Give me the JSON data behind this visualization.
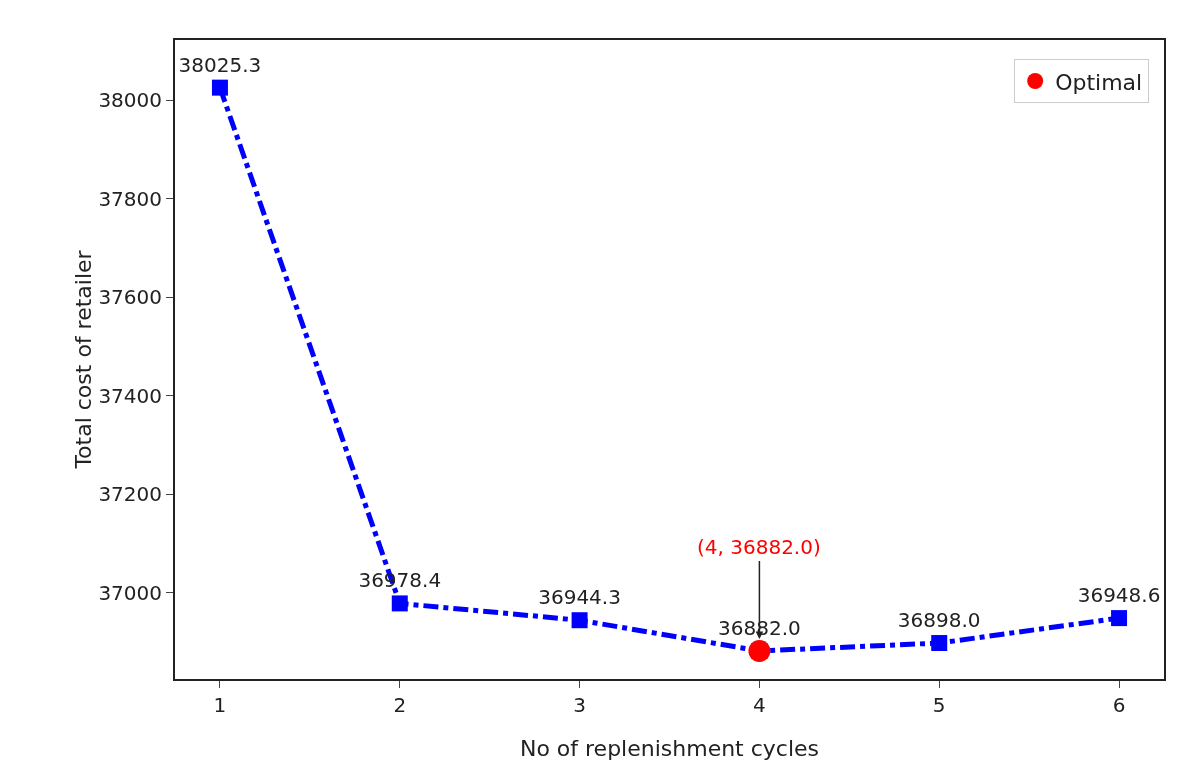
{
  "chart_data": {
    "type": "line",
    "xlabel": "No of replenishment cycles",
    "ylabel": "Total cost of retailer",
    "x": [
      1,
      2,
      3,
      4,
      5,
      6
    ],
    "series": [
      {
        "color": "#0000ff",
        "values": [
          38025.3,
          36978.4,
          36944.3,
          36882.0,
          36898.0,
          36948.6
        ],
        "value_labels": [
          "38025.3",
          "36978.4",
          "36944.3",
          "36882.0",
          "36898.0",
          "36948.6"
        ],
        "marker": "square",
        "line_style": "dashed"
      },
      {
        "name": "Optimal",
        "type": "scatter",
        "x": [
          4
        ],
        "color": "#ff0000",
        "values": [
          36882.0
        ],
        "marker": "circle"
      }
    ],
    "annotations": [
      {
        "text": "(4, 36882.0)",
        "x": 4,
        "y": 36882.0
      }
    ],
    "xlim": [
      0.75,
      6.25
    ],
    "xticks": [
      1,
      2,
      3,
      4,
      5,
      6
    ],
    "ylim": [
      36825,
      38122
    ],
    "yticks": [
      37000,
      37200,
      37400,
      37600,
      37800,
      38000
    ],
    "grid": false,
    "legend": "top right"
  }
}
